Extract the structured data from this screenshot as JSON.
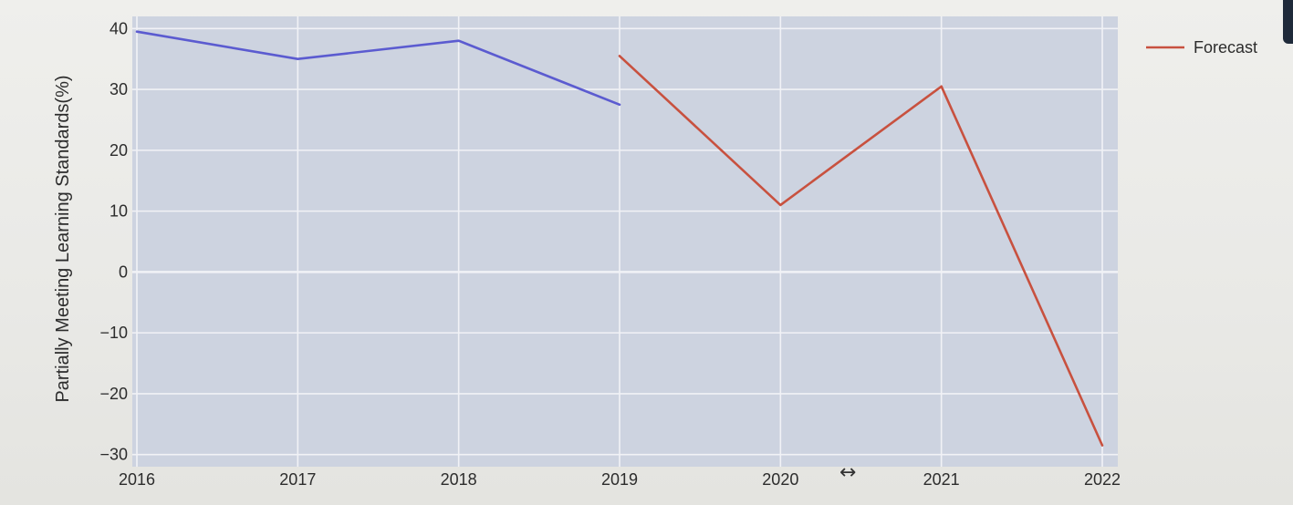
{
  "chart_data": {
    "type": "line",
    "x": [
      "2016",
      "2017",
      "2018",
      "2019",
      "2020",
      "2021",
      "2022"
    ],
    "ylabel": "Partially Meeting Learning Standards(%)",
    "ylim": [
      -32,
      42
    ],
    "yticks": [
      -30,
      -20,
      -10,
      0,
      10,
      20,
      30,
      40
    ],
    "ytick_labels": [
      "−30",
      "−20",
      "−10",
      "0",
      "10",
      "20",
      "30",
      "40"
    ],
    "grid": true,
    "legend_position": "top-right",
    "series": [
      {
        "color": "#5b5bd0",
        "points": [
          {
            "x": "2016",
            "y": 39.5
          },
          {
            "x": "2017",
            "y": 35
          },
          {
            "x": "2018",
            "y": 38
          },
          {
            "x": "2019",
            "y": 27.5
          }
        ]
      },
      {
        "name": "Forecast",
        "color": "#c8513f",
        "points": [
          {
            "x": "2019",
            "y": 35.5
          },
          {
            "x": "2020",
            "y": 11
          },
          {
            "x": "2021",
            "y": 30.5
          },
          {
            "x": "2022",
            "y": -28.5
          }
        ]
      }
    ]
  },
  "colors": {
    "plot_background": "#cdd3e0",
    "gridline": "#f1f2f6"
  },
  "icons": {
    "cursor": "horizontal-resize-cursor-icon"
  }
}
